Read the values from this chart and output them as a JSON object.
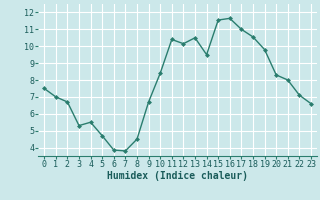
{
  "x": [
    0,
    1,
    2,
    3,
    4,
    5,
    6,
    7,
    8,
    9,
    10,
    11,
    12,
    13,
    14,
    15,
    16,
    17,
    18,
    19,
    20,
    21,
    22,
    23
  ],
  "y": [
    7.5,
    7.0,
    6.7,
    5.3,
    5.5,
    4.7,
    3.85,
    3.8,
    4.5,
    6.7,
    8.4,
    10.4,
    10.15,
    10.5,
    9.5,
    11.55,
    11.65,
    11.0,
    10.55,
    9.8,
    8.3,
    8.0,
    7.1,
    6.6
  ],
  "line_color": "#2a7d6e",
  "marker": "D",
  "marker_size": 2.0,
  "background_color": "#cce8ea",
  "grid_color": "#b0d8dc",
  "xlabel": "Humidex (Indice chaleur)",
  "xlabel_fontsize": 7,
  "xlim": [
    -0.5,
    23.5
  ],
  "ylim": [
    3.5,
    12.5
  ],
  "yticks": [
    4,
    5,
    6,
    7,
    8,
    9,
    10,
    11,
    12
  ],
  "xticks": [
    0,
    1,
    2,
    3,
    4,
    5,
    6,
    7,
    8,
    9,
    10,
    11,
    12,
    13,
    14,
    15,
    16,
    17,
    18,
    19,
    20,
    21,
    22,
    23
  ],
  "tick_fontsize": 6.0,
  "line_width": 1.0
}
